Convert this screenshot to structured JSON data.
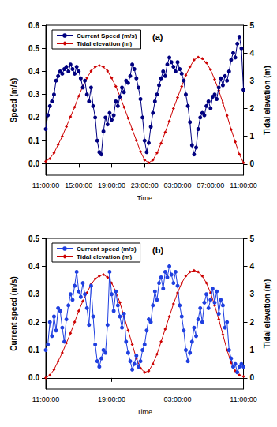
{
  "chart_data": [
    {
      "type": "line",
      "title": "(a)",
      "x_label": "Time",
      "y_label": "Speed (m/s)",
      "y2_label": "Tidal elevation (m)",
      "xlim": [
        0,
        24
      ],
      "xticks": [
        {
          "value": 0,
          "label": "11:00:00"
        },
        {
          "value": 4,
          "label": "15:00:00"
        },
        {
          "value": 8,
          "label": "19:00:00"
        },
        {
          "value": 12,
          "label": "23:00:00"
        },
        {
          "value": 16,
          "label": "03:00:00"
        },
        {
          "value": 20,
          "label": "07:00:00"
        },
        {
          "value": 24,
          "label": "11:00:00"
        }
      ],
      "ylim": [
        -0.05,
        0.6
      ],
      "yticks": [
        {
          "value": 0,
          "label": "0.0"
        },
        0.1,
        0.2,
        0.3,
        0.4,
        0.5,
        0.6
      ],
      "y2lim": [
        -0.4,
        5
      ],
      "y2ticks": [
        0,
        1,
        2,
        3,
        4,
        5
      ],
      "grid": false,
      "legend": "upper left",
      "series": [
        {
          "name": "Current Speed (m/s)",
          "color": "#000080",
          "marker": "circle",
          "line_style": "solid",
          "x": [
            0,
            0.25,
            0.5,
            0.75,
            1,
            1.25,
            1.5,
            1.75,
            2,
            2.25,
            2.5,
            2.75,
            3,
            3.25,
            3.5,
            3.75,
            4,
            4.25,
            4.5,
            4.75,
            5,
            5.25,
            5.5,
            5.75,
            6,
            6.25,
            6.5,
            6.75,
            7,
            7.25,
            7.5,
            7.75,
            8,
            8.25,
            8.5,
            8.75,
            9,
            9.25,
            9.5,
            9.75,
            10,
            10.25,
            10.5,
            10.75,
            11,
            11.25,
            11.5,
            11.75,
            12,
            12.25,
            12.5,
            12.75,
            13,
            13.25,
            13.5,
            13.75,
            14,
            14.25,
            14.5,
            14.75,
            15,
            15.25,
            15.5,
            15.75,
            16,
            16.25,
            16.5,
            16.75,
            17,
            17.25,
            17.5,
            17.75,
            18,
            18.25,
            18.5,
            18.75,
            19,
            19.25,
            19.5,
            19.75,
            20,
            20.25,
            20.5,
            20.75,
            21,
            21.25,
            21.5,
            21.75,
            22,
            22.25,
            22.5,
            22.75,
            23,
            23.25,
            23.5,
            23.75,
            24
          ],
          "values": [
            0.15,
            0.21,
            0.25,
            0.27,
            0.3,
            0.36,
            0.38,
            0.4,
            0.39,
            0.41,
            0.42,
            0.4,
            0.43,
            0.41,
            0.39,
            0.42,
            0.4,
            0.37,
            0.33,
            0.36,
            0.3,
            0.27,
            0.33,
            0.25,
            0.2,
            0.1,
            0.05,
            0.04,
            0.14,
            0.2,
            0.17,
            0.22,
            0.19,
            0.21,
            0.27,
            0.25,
            0.29,
            0.33,
            0.31,
            0.36,
            0.35,
            0.38,
            0.43,
            0.41,
            0.37,
            0.33,
            0.28,
            0.2,
            0.1,
            0.05,
            0.09,
            0.16,
            0.22,
            0.27,
            0.3,
            0.34,
            0.37,
            0.4,
            0.38,
            0.43,
            0.46,
            0.44,
            0.42,
            0.4,
            0.44,
            0.41,
            0.39,
            0.36,
            0.3,
            0.25,
            0.18,
            0.08,
            0.04,
            0.07,
            0.15,
            0.2,
            0.22,
            0.21,
            0.25,
            0.27,
            0.24,
            0.29,
            0.3,
            0.28,
            0.33,
            0.37,
            0.34,
            0.38,
            0.36,
            0.4,
            0.45,
            0.48,
            0.46,
            0.52,
            0.55,
            0.5,
            0.32
          ]
        },
        {
          "name": "Tidal elevation (m)",
          "color": "#cc0000",
          "marker": "diamond",
          "line_style": "solid",
          "axis": "y2",
          "x": [
            0,
            0.5,
            1,
            1.5,
            2,
            2.5,
            3,
            3.5,
            4,
            4.5,
            5,
            5.5,
            6,
            6.5,
            7,
            7.5,
            8,
            8.5,
            9,
            9.5,
            10,
            10.5,
            11,
            11.5,
            12,
            12.5,
            13,
            13.5,
            14,
            14.5,
            15,
            15.5,
            16,
            16.5,
            17,
            17.5,
            18,
            18.5,
            19,
            19.5,
            20,
            20.5,
            21,
            21.5,
            22,
            22.5,
            23,
            23.5,
            24
          ],
          "values": [
            0.1,
            0.2,
            0.4,
            0.7,
            1.0,
            1.35,
            1.7,
            2.05,
            2.45,
            2.8,
            3.1,
            3.35,
            3.5,
            3.55,
            3.5,
            3.35,
            3.1,
            2.8,
            2.45,
            2.05,
            1.65,
            1.25,
            0.85,
            0.45,
            0.15,
            0.05,
            0.15,
            0.4,
            0.75,
            1.15,
            1.55,
            2.0,
            2.4,
            2.8,
            3.2,
            3.5,
            3.75,
            3.85,
            3.8,
            3.65,
            3.4,
            3.05,
            2.65,
            2.2,
            1.75,
            1.25,
            0.8,
            0.35,
            0.05
          ]
        }
      ]
    },
    {
      "type": "line",
      "title": "(b)",
      "x_label": "Time",
      "y_label": "Current speed (m/s)",
      "y2_label": "Tidal elevation (m)",
      "xlim": [
        0,
        24
      ],
      "xticks": [
        {
          "value": 0,
          "label": "11:00:00"
        },
        {
          "value": 8,
          "label": "19:00:00"
        },
        {
          "value": 16,
          "label": "03:00:00"
        },
        {
          "value": 24,
          "label": "11:00:00"
        }
      ],
      "ylim": [
        -0.04,
        0.5
      ],
      "yticks": [
        {
          "value": 0,
          "label": "0.0"
        },
        0.1,
        0.2,
        0.3,
        0.4,
        0.5
      ],
      "y2lim": [
        -0.4,
        5
      ],
      "y2ticks": [
        0,
        1,
        2,
        3,
        4,
        5
      ],
      "grid": false,
      "legend": "upper left",
      "series": [
        {
          "name": "Current speed (m/s)",
          "color": "#1f3fe0",
          "marker": "circle",
          "line_style": "solid",
          "x": [
            0,
            0.25,
            0.5,
            0.75,
            1,
            1.25,
            1.5,
            1.75,
            2,
            2.25,
            2.5,
            2.75,
            3,
            3.25,
            3.5,
            3.75,
            4,
            4.25,
            4.5,
            4.75,
            5,
            5.25,
            5.5,
            5.75,
            6,
            6.25,
            6.5,
            6.75,
            7,
            7.25,
            7.5,
            7.75,
            8,
            8.25,
            8.5,
            8.75,
            9,
            9.25,
            9.5,
            9.75,
            10,
            10.25,
            10.5,
            10.75,
            11,
            11.25,
            11.5,
            11.75,
            12,
            12.25,
            12.5,
            12.75,
            13,
            13.25,
            13.5,
            13.75,
            14,
            14.25,
            14.5,
            14.75,
            15,
            15.25,
            15.5,
            15.75,
            16,
            16.25,
            16.5,
            16.75,
            17,
            17.25,
            17.5,
            17.75,
            18,
            18.25,
            18.5,
            18.75,
            19,
            19.25,
            19.5,
            19.75,
            20,
            20.25,
            20.5,
            20.75,
            21,
            21.25,
            21.5,
            21.75,
            22,
            22.25,
            22.5,
            22.75,
            23,
            23.25,
            23.5,
            23.75,
            24
          ],
          "values": [
            0.1,
            0.12,
            0.2,
            0.15,
            0.22,
            0.17,
            0.25,
            0.24,
            0.18,
            0.13,
            0.21,
            0.26,
            0.3,
            0.28,
            0.33,
            0.38,
            0.31,
            0.29,
            0.34,
            0.3,
            0.25,
            0.19,
            0.33,
            0.22,
            0.12,
            0.06,
            0.04,
            0.07,
            0.1,
            0.09,
            0.19,
            0.38,
            0.3,
            0.24,
            0.31,
            0.26,
            0.22,
            0.18,
            0.23,
            0.13,
            0.09,
            0.06,
            0.03,
            0.05,
            0.08,
            0.04,
            0.06,
            0.1,
            0.12,
            0.17,
            0.21,
            0.2,
            0.26,
            0.31,
            0.28,
            0.34,
            0.36,
            0.32,
            0.38,
            0.36,
            0.4,
            0.37,
            0.34,
            0.38,
            0.33,
            0.26,
            0.22,
            0.17,
            0.1,
            0.06,
            0.09,
            0.13,
            0.18,
            0.15,
            0.21,
            0.25,
            0.2,
            0.27,
            0.3,
            0.25,
            0.28,
            0.32,
            0.27,
            0.31,
            0.23,
            0.28,
            0.26,
            0.18,
            0.2,
            0.1,
            0.07,
            0.04,
            0.05,
            0.02,
            0.04,
            0.05,
            0.04
          ]
        },
        {
          "name": "Tidal elevation (m)",
          "color": "#cc0000",
          "marker": "diamond",
          "line_style": "solid",
          "axis": "y2",
          "x": [
            0,
            0.5,
            1,
            1.5,
            2,
            2.5,
            3,
            3.5,
            4,
            4.5,
            5,
            5.5,
            6,
            6.5,
            7,
            7.5,
            8,
            8.5,
            9,
            9.5,
            10,
            10.5,
            11,
            11.5,
            12,
            12.5,
            13,
            13.5,
            14,
            14.5,
            15,
            15.5,
            16,
            16.5,
            17,
            17.5,
            18,
            18.5,
            19,
            19.5,
            20,
            20.5,
            21,
            21.5,
            22,
            22.5,
            23,
            23.5,
            24
          ],
          "values": [
            0,
            0.1,
            0.3,
            0.6,
            0.9,
            1.25,
            1.6,
            2.0,
            2.4,
            2.75,
            3.05,
            3.35,
            3.55,
            3.65,
            3.7,
            3.6,
            3.4,
            3.1,
            2.7,
            2.2,
            1.7,
            1.2,
            0.7,
            0.35,
            0.2,
            0.25,
            0.5,
            0.85,
            1.3,
            1.75,
            2.2,
            2.65,
            3.05,
            3.4,
            3.65,
            3.8,
            3.85,
            3.8,
            3.65,
            3.4,
            3.05,
            2.6,
            2.1,
            1.55,
            1.0,
            0.55,
            0.25,
            0.1,
            0.05
          ]
        }
      ]
    }
  ]
}
